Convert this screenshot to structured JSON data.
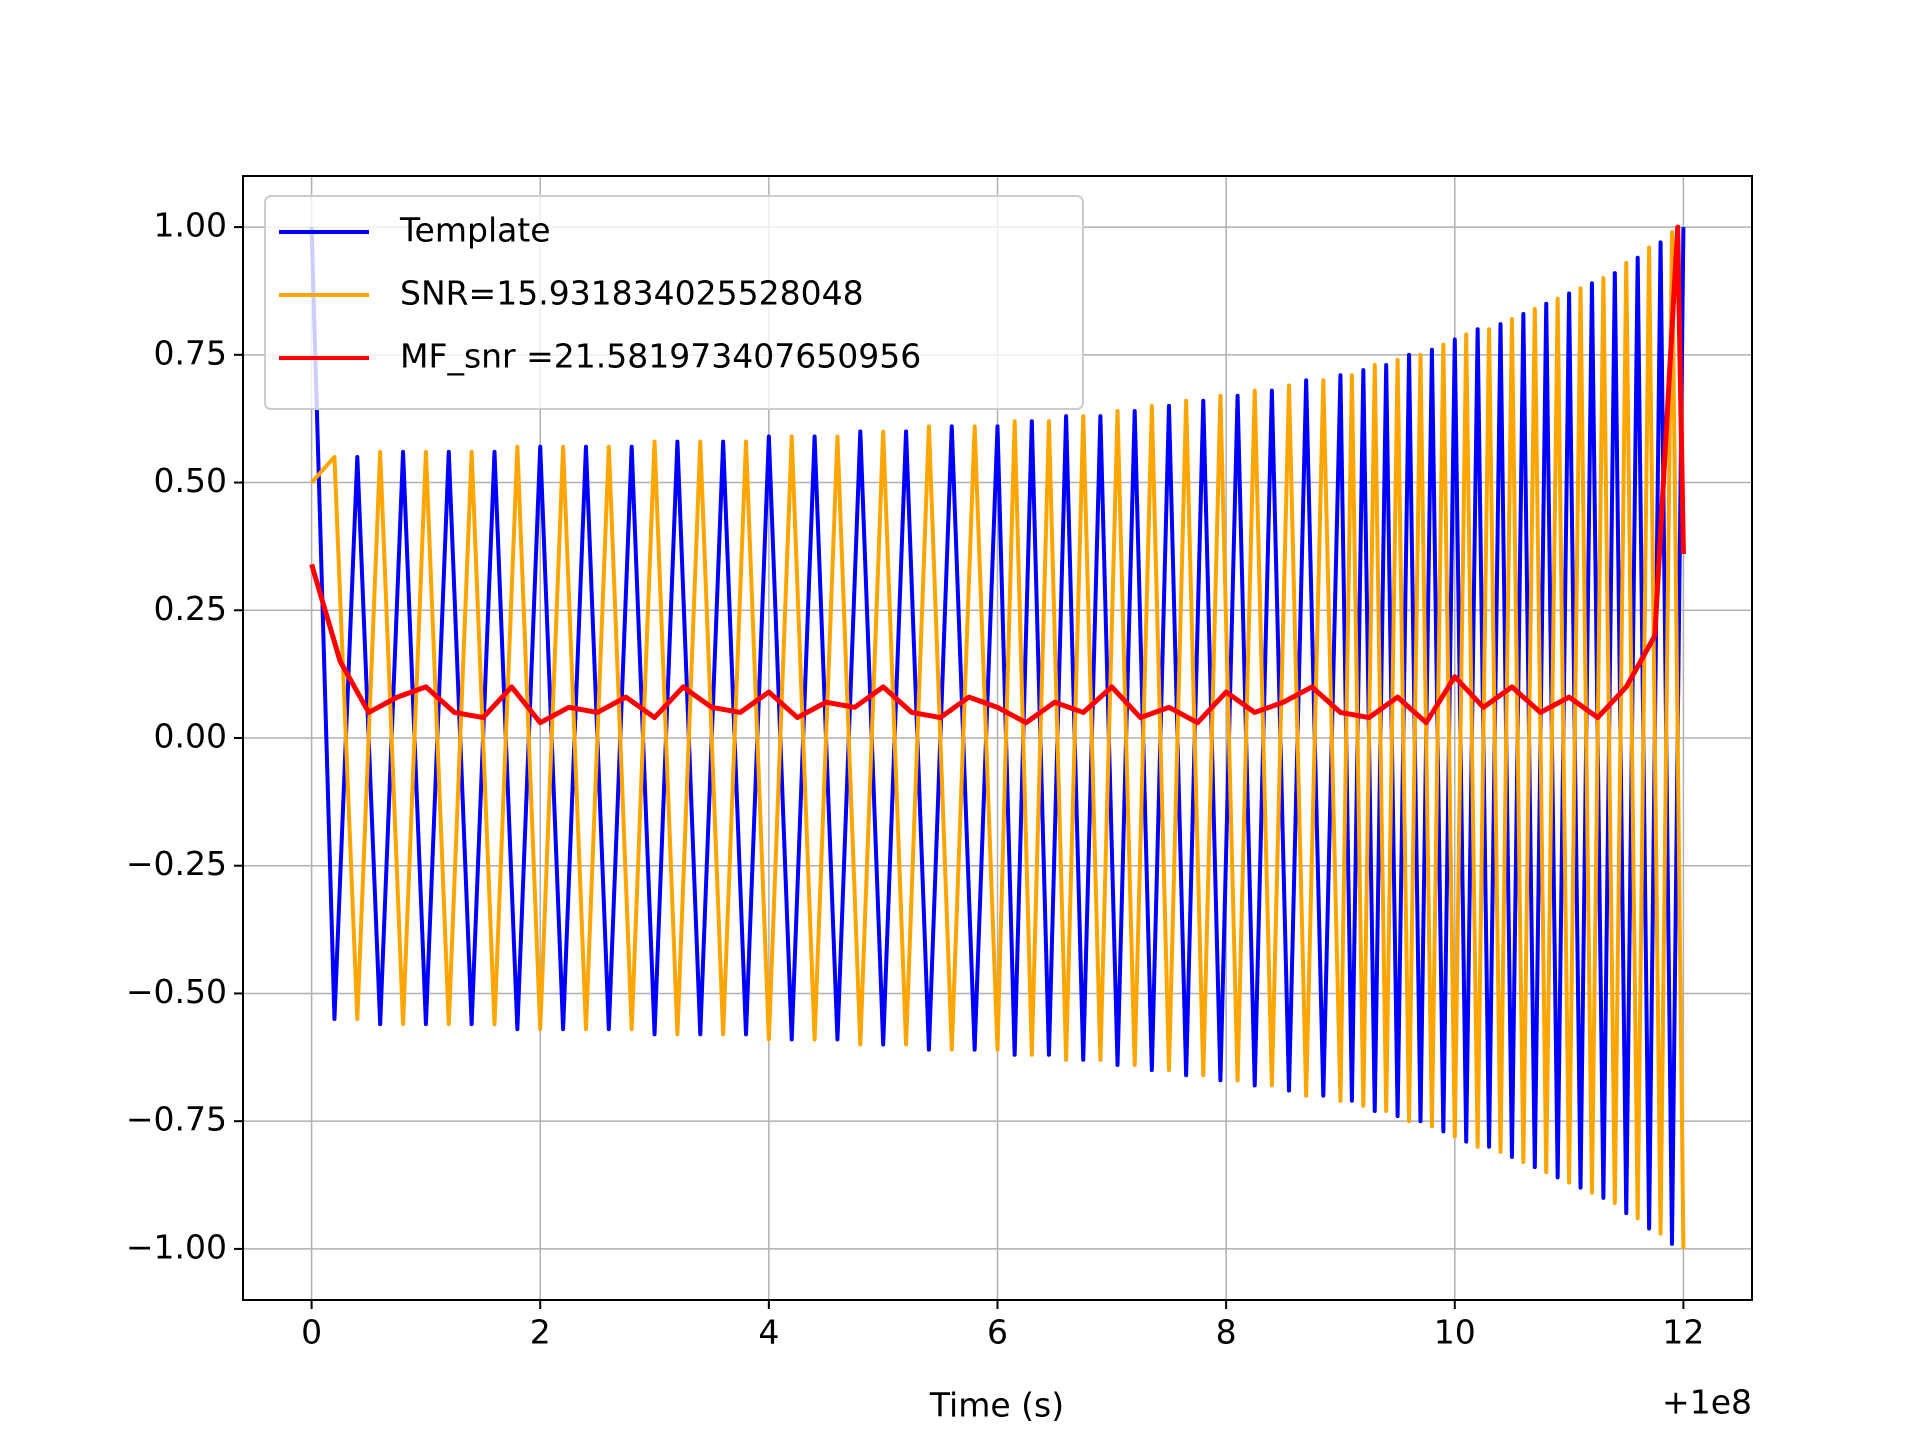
{
  "chart_data": {
    "type": "line",
    "xlabel": "Time (s)",
    "x_offset_label": "+1e8",
    "xlim": [
      -0.6,
      12.6
    ],
    "ylim": [
      -1.1,
      1.1
    ],
    "xticks": [
      0,
      2,
      4,
      6,
      8,
      10,
      12
    ],
    "yticks": [
      {
        "value": -1,
        "label": "−1.00"
      },
      {
        "value": -0.75,
        "label": "−0.75"
      },
      {
        "value": -0.5,
        "label": "−0.50"
      },
      {
        "value": -0.25,
        "label": "−0.25"
      },
      {
        "value": 0,
        "label": "0.00"
      },
      0.25,
      {
        "value": 0.5,
        "label": "0.50"
      },
      0.75,
      {
        "value": 1,
        "label": "1.00"
      }
    ],
    "grid": true,
    "legend": "upper left",
    "series": [
      {
        "name": "Template",
        "color": "#0000ff",
        "x": [
          0,
          0.2,
          0.4,
          0.6,
          0.8,
          1.0,
          1.2,
          1.4,
          1.6,
          1.8,
          2.0,
          2.2,
          2.4,
          2.6,
          2.8,
          3.0,
          3.2,
          3.4,
          3.6,
          3.8,
          4.0,
          4.2,
          4.4,
          4.6,
          4.8,
          5.0,
          5.2,
          5.4,
          5.6,
          5.8,
          6.0,
          6.15,
          6.3,
          6.45,
          6.6,
          6.75,
          6.9,
          7.05,
          7.2,
          7.35,
          7.5,
          7.65,
          7.8,
          7.95,
          8.1,
          8.25,
          8.4,
          8.55,
          8.7,
          8.85,
          9.0,
          9.1,
          9.2,
          9.3,
          9.4,
          9.5,
          9.6,
          9.7,
          9.8,
          9.9,
          10.0,
          10.1,
          10.2,
          10.3,
          10.4,
          10.5,
          10.6,
          10.7,
          10.8,
          10.9,
          11.0,
          11.1,
          11.2,
          11.3,
          11.4,
          11.5,
          11.6,
          11.7,
          11.8,
          11.9,
          12.0
        ],
        "values": [
          1.0,
          -0.55,
          0.55,
          -0.56,
          0.56,
          -0.56,
          0.56,
          -0.56,
          0.56,
          -0.57,
          0.57,
          -0.57,
          0.57,
          -0.57,
          0.57,
          -0.58,
          0.58,
          -0.58,
          0.58,
          -0.58,
          0.59,
          -0.59,
          0.59,
          -0.59,
          0.6,
          -0.6,
          0.6,
          -0.61,
          0.61,
          -0.61,
          0.61,
          -0.62,
          0.62,
          -0.62,
          0.63,
          -0.63,
          0.63,
          -0.64,
          0.64,
          -0.65,
          0.65,
          -0.66,
          0.66,
          -0.67,
          0.67,
          -0.68,
          0.68,
          -0.69,
          0.7,
          -0.7,
          0.71,
          -0.71,
          0.72,
          -0.73,
          0.73,
          -0.74,
          0.75,
          -0.75,
          0.76,
          -0.77,
          0.78,
          -0.79,
          0.8,
          -0.8,
          0.81,
          -0.82,
          0.83,
          -0.84,
          0.85,
          -0.86,
          0.87,
          -0.88,
          0.89,
          -0.9,
          0.91,
          -0.93,
          0.94,
          -0.96,
          0.97,
          -0.99,
          1.0
        ]
      },
      {
        "name": "SNR=15.931834025528048",
        "color": "#ffa500",
        "x": [
          0,
          0.2,
          0.4,
          0.6,
          0.8,
          1.0,
          1.2,
          1.4,
          1.6,
          1.8,
          2.0,
          2.2,
          2.4,
          2.6,
          2.8,
          3.0,
          3.2,
          3.4,
          3.6,
          3.8,
          4.0,
          4.2,
          4.4,
          4.6,
          4.8,
          5.0,
          5.2,
          5.4,
          5.6,
          5.8,
          6.0,
          6.15,
          6.3,
          6.45,
          6.6,
          6.75,
          6.9,
          7.05,
          7.2,
          7.35,
          7.5,
          7.65,
          7.8,
          7.95,
          8.1,
          8.25,
          8.4,
          8.55,
          8.7,
          8.85,
          9.0,
          9.1,
          9.2,
          9.3,
          9.4,
          9.5,
          9.6,
          9.7,
          9.8,
          9.9,
          10.0,
          10.1,
          10.2,
          10.3,
          10.4,
          10.5,
          10.6,
          10.7,
          10.8,
          10.9,
          11.0,
          11.1,
          11.2,
          11.3,
          11.4,
          11.5,
          11.6,
          11.7,
          11.8,
          11.9,
          12.0
        ],
        "values": [
          0.5,
          0.55,
          -0.55,
          0.56,
          -0.56,
          0.56,
          -0.56,
          0.56,
          -0.56,
          0.57,
          -0.57,
          0.57,
          -0.57,
          0.57,
          -0.57,
          0.58,
          -0.58,
          0.58,
          -0.58,
          0.58,
          -0.59,
          0.59,
          -0.59,
          0.59,
          -0.6,
          0.6,
          -0.6,
          0.61,
          -0.61,
          0.61,
          -0.61,
          0.62,
          -0.62,
          0.62,
          -0.63,
          0.63,
          -0.63,
          0.64,
          -0.64,
          0.65,
          -0.65,
          0.66,
          -0.66,
          0.67,
          -0.67,
          0.68,
          -0.68,
          0.69,
          -0.7,
          0.7,
          -0.71,
          0.71,
          -0.72,
          0.73,
          -0.73,
          0.74,
          -0.75,
          0.75,
          -0.76,
          0.77,
          -0.78,
          0.79,
          -0.8,
          0.8,
          -0.81,
          0.82,
          -0.83,
          0.84,
          -0.85,
          0.86,
          -0.87,
          0.88,
          -0.89,
          0.9,
          -0.91,
          0.93,
          -0.94,
          0.96,
          -0.97,
          0.99,
          -1.0
        ]
      },
      {
        "name": "MF_snr =21.581973407650956",
        "color": "#ff0000",
        "x": [
          0,
          0.25,
          0.5,
          0.75,
          1.0,
          1.25,
          1.5,
          1.75,
          2.0,
          2.25,
          2.5,
          2.75,
          3.0,
          3.25,
          3.5,
          3.75,
          4.0,
          4.25,
          4.5,
          4.75,
          5.0,
          5.25,
          5.5,
          5.75,
          6.0,
          6.25,
          6.5,
          6.75,
          7.0,
          7.25,
          7.5,
          7.75,
          8.0,
          8.25,
          8.5,
          8.75,
          9.0,
          9.25,
          9.5,
          9.75,
          10.0,
          10.25,
          10.5,
          10.75,
          11.0,
          11.25,
          11.5,
          11.75,
          11.95,
          12.0
        ],
        "values": [
          0.34,
          0.15,
          0.05,
          0.08,
          0.1,
          0.05,
          0.04,
          0.1,
          0.03,
          0.06,
          0.05,
          0.08,
          0.04,
          0.1,
          0.06,
          0.05,
          0.09,
          0.04,
          0.07,
          0.06,
          0.1,
          0.05,
          0.04,
          0.08,
          0.06,
          0.03,
          0.07,
          0.05,
          0.1,
          0.04,
          0.06,
          0.03,
          0.09,
          0.05,
          0.07,
          0.1,
          0.05,
          0.04,
          0.08,
          0.03,
          0.12,
          0.06,
          0.1,
          0.05,
          0.08,
          0.04,
          0.1,
          0.2,
          1.0,
          0.36
        ]
      }
    ]
  }
}
